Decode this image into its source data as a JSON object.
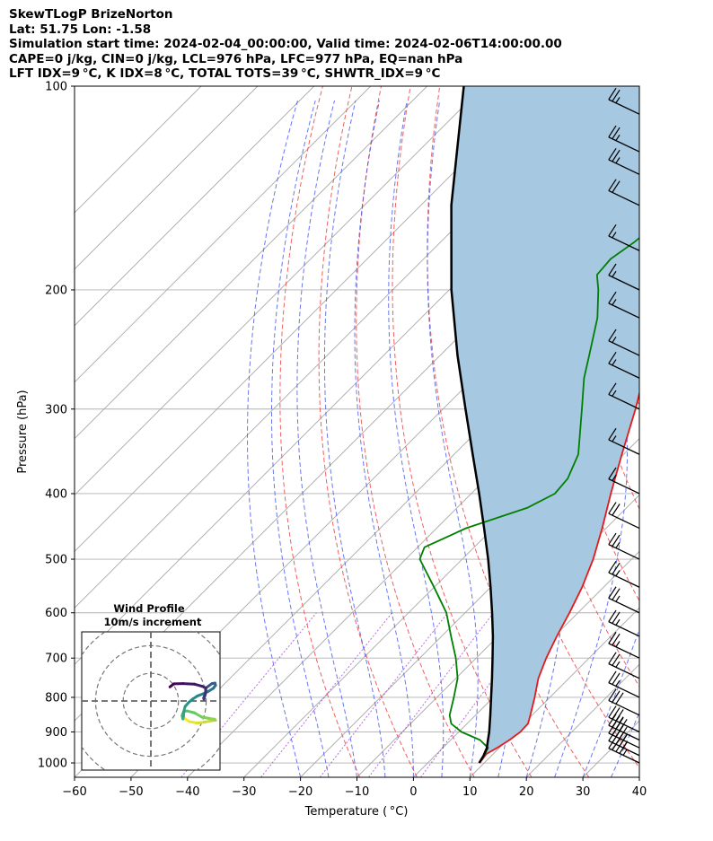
{
  "header": {
    "line1": "SkewTLogP BrizeNorton",
    "line2": "Lat: 51.75   Lon: -1.58",
    "line3": "Simulation start time: 2024-02-04_00:00:00, Valid time: 2024-02-06T14:00:00.00",
    "line4": "CAPE=0 j/kg, CIN=0 j/kg, LCL=976 hPa, LFC=977 hPa, EQ=nan hPa",
    "line5": "LFT IDX=9 °C, K IDX=8 °C, TOTAL TOTS=39 °C, SHWTR_IDX=9 °C"
  },
  "chart_data": {
    "type": "line",
    "xlabel": "Temperature ( °C)",
    "ylabel": "Pressure (hPa)",
    "xlim": [
      -60,
      40
    ],
    "ylim": [
      1050,
      100
    ],
    "y_scale": "log",
    "grid": true,
    "x_ticks": [
      -60,
      -50,
      -40,
      -30,
      -20,
      -10,
      0,
      10,
      20,
      30,
      40
    ],
    "y_ticks": [
      100,
      200,
      300,
      400,
      500,
      600,
      700,
      800,
      900,
      1000
    ],
    "x_tick_labels": [
      "−60",
      "−50",
      "−40",
      "−30",
      "−20",
      "−10",
      "0",
      "10",
      "20",
      "30",
      "40"
    ],
    "y_tick_labels": [
      "100",
      "200",
      "300",
      "400",
      "500",
      "600",
      "700",
      "800",
      "900",
      "1000"
    ],
    "series": [
      {
        "role": "temperature",
        "color": "#e41a1c",
        "points": [
          [
            1000,
            9.2
          ],
          [
            970,
            8.8
          ],
          [
            950,
            9.6
          ],
          [
            925,
            10.4
          ],
          [
            900,
            10.9
          ],
          [
            875,
            10.8
          ],
          [
            850,
            9.7
          ],
          [
            800,
            7.3
          ],
          [
            750,
            4.6
          ],
          [
            700,
            2.4
          ],
          [
            650,
            0.4
          ],
          [
            600,
            -1.5
          ],
          [
            550,
            -3.8
          ],
          [
            500,
            -6.8
          ],
          [
            450,
            -10.7
          ],
          [
            400,
            -15.3
          ],
          [
            350,
            -20.3
          ],
          [
            300,
            -25.9
          ],
          [
            280,
            -28.6
          ],
          [
            250,
            -34.0
          ],
          [
            220,
            -40.2
          ],
          [
            200,
            -44.4
          ],
          [
            195,
            -45.8
          ],
          [
            180,
            -46.7
          ],
          [
            170,
            -47.4
          ],
          [
            160,
            -46.5
          ],
          [
            150,
            -46.9
          ],
          [
            140,
            -46.4
          ],
          [
            130,
            -45.8
          ],
          [
            120,
            -44.8
          ],
          [
            110,
            -43.5
          ],
          [
            100,
            -42.4
          ]
        ]
      },
      {
        "role": "dewpoint",
        "color": "#008000",
        "points": [
          [
            1000,
            9.1
          ],
          [
            980,
            8.8
          ],
          [
            950,
            8.0
          ],
          [
            925,
            5.2
          ],
          [
            900,
            0.5
          ],
          [
            875,
            -2.8
          ],
          [
            850,
            -4.6
          ],
          [
            800,
            -7.0
          ],
          [
            750,
            -9.7
          ],
          [
            700,
            -13.6
          ],
          [
            650,
            -18.3
          ],
          [
            600,
            -23.3
          ],
          [
            550,
            -30.0
          ],
          [
            500,
            -37.5
          ],
          [
            480,
            -38.8
          ],
          [
            450,
            -34.8
          ],
          [
            420,
            -27.6
          ],
          [
            400,
            -25.2
          ],
          [
            380,
            -25.6
          ],
          [
            350,
            -28.0
          ],
          [
            300,
            -35.4
          ],
          [
            270,
            -40.5
          ],
          [
            250,
            -43.6
          ],
          [
            220,
            -48.8
          ],
          [
            200,
            -53.6
          ],
          [
            190,
            -56.5
          ],
          [
            180,
            -56.9
          ],
          [
            170,
            -55.7
          ],
          [
            160,
            -55.0
          ],
          [
            150,
            -56.0
          ],
          [
            140,
            -56.9
          ],
          [
            130,
            -58.0
          ],
          [
            120,
            -58.6
          ],
          [
            110,
            -56.8
          ],
          [
            100,
            -55.4
          ]
        ]
      },
      {
        "role": "parcel",
        "color": "#000000",
        "points": [
          [
            1000,
            9.1
          ],
          [
            976,
            8.6
          ],
          [
            950,
            7.8
          ],
          [
            925,
            6.6
          ],
          [
            900,
            5.4
          ],
          [
            850,
            2.6
          ],
          [
            800,
            -0.4
          ],
          [
            750,
            -3.6
          ],
          [
            700,
            -7.1
          ],
          [
            650,
            -10.9
          ],
          [
            600,
            -15.2
          ],
          [
            550,
            -20.0
          ],
          [
            500,
            -25.4
          ],
          [
            450,
            -31.6
          ],
          [
            400,
            -38.6
          ],
          [
            350,
            -46.7
          ],
          [
            300,
            -56.0
          ],
          [
            250,
            -66.9
          ],
          [
            200,
            -79.6
          ],
          [
            150,
            -94.6
          ],
          [
            100,
            -113.5
          ]
        ]
      }
    ],
    "shading": {
      "between": [
        "temperature",
        "parcel"
      ],
      "color": "#a6c8e0"
    },
    "isotherm_c": [
      -160,
      -150,
      -140,
      -130,
      -120,
      -110,
      -100,
      -90,
      -80,
      -70,
      -60,
      -50,
      -40,
      -30,
      -20,
      -10,
      0,
      10,
      20,
      30,
      40
    ],
    "dry_adiabats_theta_k": [
      260,
      270,
      280,
      290,
      300,
      310,
      320,
      330,
      340,
      350,
      360,
      370,
      380,
      390,
      400,
      410,
      420,
      430,
      440
    ],
    "moist_adiabats_start_c": [
      -20,
      -15,
      -10,
      -5,
      0,
      5,
      10,
      15,
      20,
      25,
      30,
      35
    ],
    "mixing_ratio_lines": [
      0.0001,
      0.0004,
      0.001,
      0.002,
      0.004
    ],
    "wind_barbs": [
      {
        "p": 1000,
        "speed_kt": 45
      },
      {
        "p": 975,
        "speed_kt": 45
      },
      {
        "p": 950,
        "speed_kt": 45
      },
      {
        "p": 925,
        "speed_kt": 40
      },
      {
        "p": 900,
        "speed_kt": 35
      },
      {
        "p": 850,
        "speed_kt": 30
      },
      {
        "p": 800,
        "speed_kt": 25
      },
      {
        "p": 750,
        "speed_kt": 25
      },
      {
        "p": 700,
        "speed_kt": 25
      },
      {
        "p": 650,
        "speed_kt": 25
      },
      {
        "p": 600,
        "speed_kt": 25
      },
      {
        "p": 550,
        "speed_kt": 25
      },
      {
        "p": 500,
        "speed_kt": 25
      },
      {
        "p": 450,
        "speed_kt": 20
      },
      {
        "p": 400,
        "speed_kt": 15
      },
      {
        "p": 350,
        "speed_kt": 15
      },
      {
        "p": 300,
        "speed_kt": 15
      },
      {
        "p": 270,
        "speed_kt": 15
      },
      {
        "p": 250,
        "speed_kt": 15
      },
      {
        "p": 220,
        "speed_kt": 15
      },
      {
        "p": 200,
        "speed_kt": 15
      },
      {
        "p": 175,
        "speed_kt": 15
      },
      {
        "p": 150,
        "speed_kt": 20
      },
      {
        "p": 135,
        "speed_kt": 25
      },
      {
        "p": 125,
        "speed_kt": 25
      },
      {
        "p": 110,
        "speed_kt": 25
      }
    ],
    "hodograph": {
      "title_line1": "Wind Profile",
      "title_line2": "10m/s increment",
      "rings_ms": [
        10,
        20,
        30
      ],
      "range_ms": 25,
      "points": [
        [
          11.5,
          -5.8
        ],
        [
          13.8,
          -7.4
        ],
        [
          16.7,
          -8.0
        ],
        [
          19.1,
          -7.7
        ],
        [
          21.7,
          -7.2
        ],
        [
          23.4,
          -7.0
        ],
        [
          23.1,
          -6.6
        ],
        [
          21.0,
          -6.3
        ],
        [
          18.4,
          -5.8
        ],
        [
          15.8,
          -4.3
        ],
        [
          13.1,
          -3.6
        ],
        [
          12.0,
          -3.8
        ],
        [
          11.5,
          -4.6
        ],
        [
          11.3,
          -5.4
        ],
        [
          11.6,
          -6.5
        ],
        [
          11.8,
          -5.5
        ],
        [
          11.9,
          -3.8
        ],
        [
          12.4,
          -2.0
        ],
        [
          13.6,
          -0.6
        ],
        [
          15.1,
          0.7
        ],
        [
          16.8,
          1.8
        ],
        [
          18.9,
          2.6
        ],
        [
          20.8,
          3.5
        ],
        [
          22.6,
          4.6
        ],
        [
          23.4,
          5.7
        ],
        [
          23.2,
          6.5
        ],
        [
          22.1,
          6.3
        ],
        [
          19.9,
          4.7
        ],
        [
          19.8,
          2.8
        ],
        [
          19.2,
          0.6
        ],
        [
          19.1,
          1.1
        ],
        [
          19.8,
          3.1
        ],
        [
          19.8,
          4.7
        ],
        [
          18.6,
          5.3
        ],
        [
          15.7,
          6.1
        ],
        [
          11.6,
          6.3
        ],
        [
          8.3,
          6.2
        ],
        [
          6.9,
          5.1
        ]
      ]
    }
  }
}
